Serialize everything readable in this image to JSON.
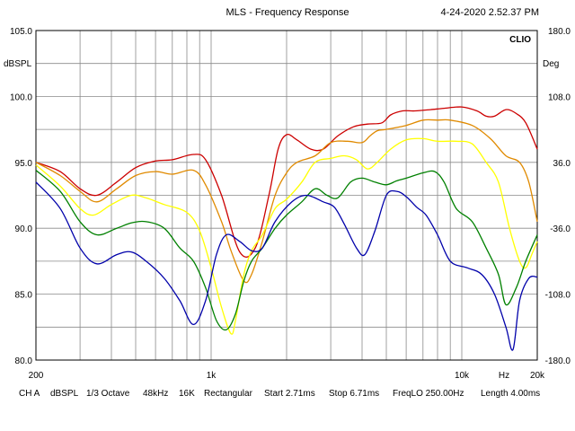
{
  "header": {
    "title": "MLS - Frequency Response",
    "timestamp": "4-24-2020 2.52.37 PM",
    "brand": "CLIO"
  },
  "footer": {
    "items": [
      "CH A",
      "dBSPL",
      "1/3 Octave",
      "48kHz",
      "16K",
      "Rectangular",
      "Start 2.71ms",
      "Stop 6.71ms",
      "FreqLO 250.00Hz",
      "Length 4.00ms"
    ]
  },
  "chart_data": {
    "type": "line",
    "title": "MLS - Frequency Response",
    "xlabel": "Hz",
    "ylabel": "dBSPL",
    "y2label": "Deg",
    "x_scale": "log",
    "xlim": [
      200,
      20000
    ],
    "ylim": [
      80,
      105
    ],
    "y2lim": [
      -180,
      180
    ],
    "grid": true,
    "x_ticks": [
      {
        "value": 200,
        "label": "200"
      },
      {
        "value": 1000,
        "label": "1k"
      },
      {
        "value": 10000,
        "label": "10k"
      },
      {
        "value": 20000,
        "label": "20k"
      }
    ],
    "y_ticks": [
      {
        "value": 105,
        "label": "105.0"
      },
      {
        "value": 100,
        "label": "100.0"
      },
      {
        "value": 95,
        "label": "95.0"
      },
      {
        "value": 90,
        "label": "90.0"
      },
      {
        "value": 85,
        "label": "85.0"
      },
      {
        "value": 80,
        "label": "80.0"
      }
    ],
    "y2_ticks": [
      {
        "value": 180,
        "label": "180.0"
      },
      {
        "value": 108,
        "label": "108.0"
      },
      {
        "value": 36,
        "label": "36.0"
      },
      {
        "value": -36,
        "label": "-36.0"
      },
      {
        "value": -108,
        "label": "-108.0"
      },
      {
        "value": -180,
        "label": "-180.0"
      }
    ],
    "series": [
      {
        "color": "#cc0000",
        "points": [
          [
            200,
            95.0
          ],
          [
            250,
            94.3
          ],
          [
            300,
            93.0
          ],
          [
            350,
            92.5
          ],
          [
            420,
            93.5
          ],
          [
            500,
            94.6
          ],
          [
            600,
            95.1
          ],
          [
            700,
            95.2
          ],
          [
            850,
            95.6
          ],
          [
            950,
            95.2
          ],
          [
            1100,
            92.5
          ],
          [
            1300,
            88.2
          ],
          [
            1500,
            88.5
          ],
          [
            1700,
            92.5
          ],
          [
            1850,
            96.0
          ],
          [
            2000,
            97.1
          ],
          [
            2200,
            96.7
          ],
          [
            2500,
            96.0
          ],
          [
            2800,
            96.0
          ],
          [
            3200,
            97.0
          ],
          [
            3700,
            97.7
          ],
          [
            4200,
            97.9
          ],
          [
            4800,
            98.0
          ],
          [
            5200,
            98.6
          ],
          [
            5800,
            98.9
          ],
          [
            6500,
            98.9
          ],
          [
            7500,
            99.0
          ],
          [
            8500,
            99.1
          ],
          [
            10000,
            99.2
          ],
          [
            11500,
            98.9
          ],
          [
            12500,
            98.5
          ],
          [
            13500,
            98.5
          ],
          [
            15000,
            99.0
          ],
          [
            16500,
            98.7
          ],
          [
            18000,
            98.0
          ],
          [
            20000,
            96.0
          ]
        ]
      },
      {
        "color": "#e08a00",
        "points": [
          [
            200,
            95.0
          ],
          [
            250,
            94.0
          ],
          [
            300,
            92.8
          ],
          [
            350,
            92.0
          ],
          [
            420,
            93.0
          ],
          [
            500,
            94.0
          ],
          [
            600,
            94.3
          ],
          [
            700,
            94.1
          ],
          [
            850,
            94.4
          ],
          [
            950,
            93.3
          ],
          [
            1100,
            90.5
          ],
          [
            1200,
            88.3
          ],
          [
            1350,
            86.0
          ],
          [
            1450,
            86.5
          ],
          [
            1600,
            89.0
          ],
          [
            1800,
            92.5
          ],
          [
            2000,
            94.2
          ],
          [
            2200,
            95.0
          ],
          [
            2600,
            95.5
          ],
          [
            3000,
            96.5
          ],
          [
            3500,
            96.6
          ],
          [
            4000,
            96.5
          ],
          [
            4300,
            97.0
          ],
          [
            4600,
            97.4
          ],
          [
            5000,
            97.5
          ],
          [
            6000,
            97.8
          ],
          [
            7000,
            98.2
          ],
          [
            8000,
            98.2
          ],
          [
            9000,
            98.2
          ],
          [
            11000,
            97.8
          ],
          [
            13000,
            96.8
          ],
          [
            15000,
            95.5
          ],
          [
            17000,
            95.0
          ],
          [
            18500,
            93.5
          ],
          [
            20000,
            90.5
          ]
        ]
      },
      {
        "color": "#ffff00",
        "points": [
          [
            200,
            94.8
          ],
          [
            250,
            93.2
          ],
          [
            300,
            91.5
          ],
          [
            340,
            91.0
          ],
          [
            400,
            91.8
          ],
          [
            480,
            92.5
          ],
          [
            550,
            92.3
          ],
          [
            650,
            91.8
          ],
          [
            800,
            91.2
          ],
          [
            900,
            89.8
          ],
          [
            1000,
            87.0
          ],
          [
            1100,
            84.0
          ],
          [
            1200,
            82.0
          ],
          [
            1250,
            83.0
          ],
          [
            1350,
            86.5
          ],
          [
            1450,
            88.3
          ],
          [
            1600,
            89.5
          ],
          [
            1800,
            91.5
          ],
          [
            2000,
            92.2
          ],
          [
            2300,
            93.5
          ],
          [
            2600,
            95.0
          ],
          [
            3000,
            95.3
          ],
          [
            3400,
            95.5
          ],
          [
            3800,
            95.2
          ],
          [
            4200,
            94.5
          ],
          [
            4600,
            95.0
          ],
          [
            5200,
            96.0
          ],
          [
            6000,
            96.7
          ],
          [
            7000,
            96.8
          ],
          [
            8000,
            96.6
          ],
          [
            9500,
            96.6
          ],
          [
            11000,
            96.4
          ],
          [
            12500,
            95.0
          ],
          [
            14000,
            93.5
          ],
          [
            15500,
            90.0
          ],
          [
            17000,
            87.5
          ],
          [
            18000,
            87.0
          ],
          [
            19000,
            88.0
          ],
          [
            20000,
            89.0
          ]
        ]
      },
      {
        "color": "#008000",
        "points": [
          [
            200,
            94.4
          ],
          [
            250,
            92.8
          ],
          [
            300,
            90.5
          ],
          [
            350,
            89.5
          ],
          [
            420,
            90.0
          ],
          [
            480,
            90.4
          ],
          [
            550,
            90.5
          ],
          [
            650,
            90.0
          ],
          [
            750,
            88.5
          ],
          [
            850,
            87.5
          ],
          [
            950,
            85.5
          ],
          [
            1050,
            83.0
          ],
          [
            1150,
            82.3
          ],
          [
            1250,
            83.5
          ],
          [
            1350,
            86.0
          ],
          [
            1450,
            87.5
          ],
          [
            1600,
            88.5
          ],
          [
            1800,
            90.0
          ],
          [
            2000,
            91.0
          ],
          [
            2300,
            92.0
          ],
          [
            2600,
            93.0
          ],
          [
            2900,
            92.5
          ],
          [
            3200,
            92.3
          ],
          [
            3600,
            93.5
          ],
          [
            4000,
            93.8
          ],
          [
            4500,
            93.5
          ],
          [
            5000,
            93.3
          ],
          [
            5500,
            93.6
          ],
          [
            6000,
            93.8
          ],
          [
            7000,
            94.2
          ],
          [
            7800,
            94.3
          ],
          [
            8500,
            93.5
          ],
          [
            9500,
            91.5
          ],
          [
            11000,
            90.5
          ],
          [
            12500,
            88.5
          ],
          [
            14000,
            86.5
          ],
          [
            15000,
            84.2
          ],
          [
            16500,
            85.5
          ],
          [
            18000,
            87.5
          ],
          [
            20000,
            89.5
          ]
        ]
      },
      {
        "color": "#0000aa",
        "points": [
          [
            200,
            93.5
          ],
          [
            250,
            91.5
          ],
          [
            300,
            88.5
          ],
          [
            350,
            87.3
          ],
          [
            420,
            88.0
          ],
          [
            480,
            88.2
          ],
          [
            550,
            87.5
          ],
          [
            650,
            86.2
          ],
          [
            750,
            84.5
          ],
          [
            850,
            82.7
          ],
          [
            950,
            84.5
          ],
          [
            1050,
            88.0
          ],
          [
            1150,
            89.5
          ],
          [
            1300,
            89.0
          ],
          [
            1450,
            88.3
          ],
          [
            1600,
            88.5
          ],
          [
            1800,
            90.5
          ],
          [
            2100,
            92.0
          ],
          [
            2400,
            92.5
          ],
          [
            2800,
            92.0
          ],
          [
            3100,
            91.6
          ],
          [
            3400,
            90.3
          ],
          [
            3800,
            88.5
          ],
          [
            4100,
            88.0
          ],
          [
            4500,
            89.8
          ],
          [
            5000,
            92.5
          ],
          [
            5500,
            92.8
          ],
          [
            6000,
            92.4
          ],
          [
            6600,
            91.6
          ],
          [
            7200,
            91.0
          ],
          [
            8000,
            89.5
          ],
          [
            9000,
            87.5
          ],
          [
            10500,
            87.0
          ],
          [
            12000,
            86.5
          ],
          [
            13500,
            85.0
          ],
          [
            15000,
            82.5
          ],
          [
            16000,
            80.8
          ],
          [
            17000,
            84.5
          ],
          [
            18500,
            86.2
          ],
          [
            20000,
            86.3
          ]
        ]
      }
    ]
  }
}
